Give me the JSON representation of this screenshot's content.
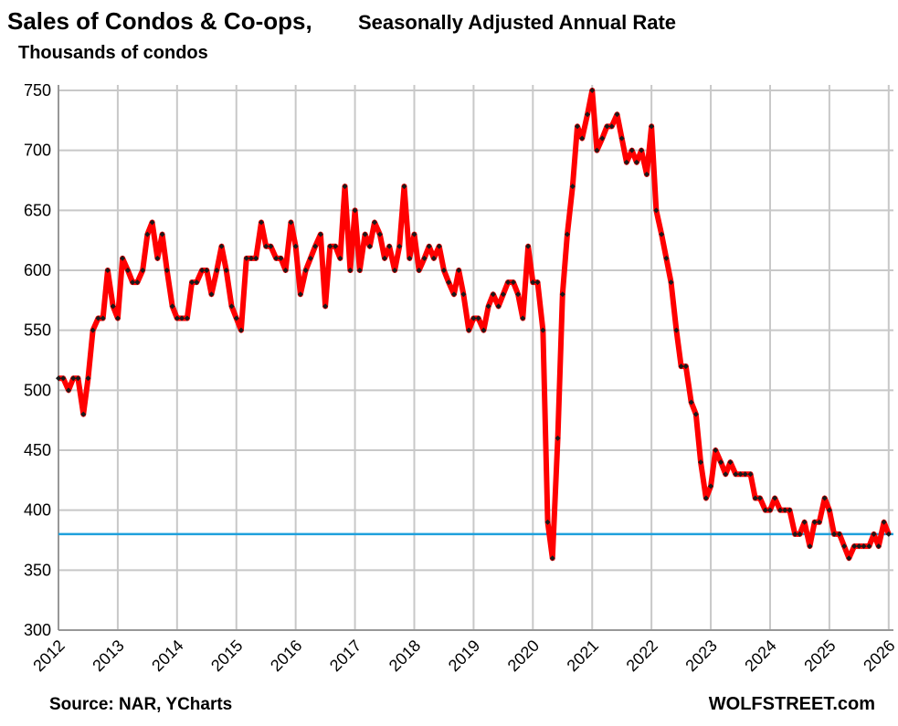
{
  "chart_data": {
    "type": "line",
    "title": "Sales of Condos  & Co-ops,",
    "subtitle": "Seasonally Adjusted Annual Rate",
    "y_axis_label": "Thousands of condos",
    "source": "Source: NAR, YCharts",
    "watermark": "WOLFSTREET.com",
    "color": "#ff0000",
    "marker_color": "#1a1a1a",
    "reference_line": {
      "value": 380,
      "color": "#1ea0dc"
    },
    "grid": true,
    "xlim": [
      2012,
      2026.08
    ],
    "xticks": [
      2012,
      2013,
      2014,
      2015,
      2016,
      2017,
      2018,
      2019,
      2020,
      2021,
      2022,
      2023,
      2024,
      2025,
      2026
    ],
    "ylim": [
      300,
      750
    ],
    "yticks": [
      300,
      350,
      400,
      450,
      500,
      550,
      600,
      650,
      700,
      750
    ],
    "x": [
      2012.0,
      2012.08,
      2012.17,
      2012.25,
      2012.33,
      2012.42,
      2012.5,
      2012.58,
      2012.67,
      2012.75,
      2012.83,
      2012.92,
      2013.0,
      2013.08,
      2013.17,
      2013.25,
      2013.33,
      2013.42,
      2013.5,
      2013.58,
      2013.67,
      2013.75,
      2013.83,
      2013.92,
      2014.0,
      2014.08,
      2014.17,
      2014.25,
      2014.33,
      2014.42,
      2014.5,
      2014.58,
      2014.67,
      2014.75,
      2014.83,
      2014.92,
      2015.0,
      2015.08,
      2015.17,
      2015.25,
      2015.33,
      2015.42,
      2015.5,
      2015.58,
      2015.67,
      2015.75,
      2015.83,
      2015.92,
      2016.0,
      2016.08,
      2016.17,
      2016.25,
      2016.33,
      2016.42,
      2016.5,
      2016.58,
      2016.67,
      2016.75,
      2016.83,
      2016.92,
      2017.0,
      2017.08,
      2017.17,
      2017.25,
      2017.33,
      2017.42,
      2017.5,
      2017.58,
      2017.67,
      2017.75,
      2017.83,
      2017.92,
      2018.0,
      2018.08,
      2018.17,
      2018.25,
      2018.33,
      2018.42,
      2018.5,
      2018.58,
      2018.67,
      2018.75,
      2018.83,
      2018.92,
      2019.0,
      2019.08,
      2019.17,
      2019.25,
      2019.33,
      2019.42,
      2019.5,
      2019.58,
      2019.67,
      2019.75,
      2019.83,
      2019.92,
      2020.0,
      2020.08,
      2020.17,
      2020.25,
      2020.33,
      2020.42,
      2020.5,
      2020.58,
      2020.67,
      2020.75,
      2020.83,
      2020.92,
      2021.0,
      2021.08,
      2021.17,
      2021.25,
      2021.33,
      2021.42,
      2021.5,
      2021.58,
      2021.67,
      2021.75,
      2021.83,
      2021.92,
      2022.0,
      2022.08,
      2022.17,
      2022.25,
      2022.33,
      2022.42,
      2022.5,
      2022.58,
      2022.67,
      2022.75,
      2022.83,
      2022.92,
      2023.0,
      2023.08,
      2023.17,
      2023.25,
      2023.33,
      2023.42,
      2023.5,
      2023.58,
      2023.67,
      2023.75,
      2023.83,
      2023.92,
      2024.0,
      2024.08,
      2024.17,
      2024.25,
      2024.33,
      2024.42,
      2024.5,
      2024.58,
      2024.67,
      2024.75,
      2024.83,
      2024.92,
      2025.0,
      2025.08,
      2025.17,
      2025.25,
      2025.33,
      2025.42,
      2025.5,
      2025.58,
      2025.67,
      2025.75,
      2025.83,
      2025.92,
      2026.0
    ],
    "values": [
      510,
      510,
      500,
      510,
      510,
      480,
      510,
      550,
      560,
      560,
      600,
      570,
      560,
      610,
      600,
      590,
      590,
      600,
      630,
      640,
      610,
      630,
      600,
      570,
      560,
      560,
      560,
      590,
      590,
      600,
      600,
      580,
      600,
      620,
      600,
      570,
      560,
      550,
      610,
      610,
      610,
      640,
      620,
      620,
      610,
      610,
      600,
      640,
      620,
      580,
      600,
      610,
      620,
      630,
      570,
      620,
      620,
      610,
      670,
      600,
      650,
      600,
      630,
      620,
      640,
      630,
      610,
      620,
      600,
      620,
      670,
      610,
      630,
      600,
      610,
      620,
      610,
      620,
      600,
      590,
      580,
      600,
      580,
      550,
      560,
      560,
      550,
      570,
      580,
      570,
      580,
      590,
      590,
      580,
      560,
      620,
      590,
      590,
      550,
      390,
      360,
      460,
      580,
      630,
      670,
      720,
      710,
      730,
      750,
      700,
      710,
      720,
      720,
      730,
      710,
      690,
      700,
      690,
      700,
      680,
      720,
      650,
      630,
      610,
      590,
      550,
      520,
      520,
      490,
      480,
      440,
      410,
      420,
      450,
      440,
      430,
      440,
      430,
      430,
      430,
      430,
      410,
      410,
      400,
      400,
      410,
      400,
      400,
      400,
      380,
      380,
      390,
      370,
      390,
      390,
      410,
      400,
      380,
      380,
      370,
      360,
      370,
      370,
      370,
      370,
      380,
      370,
      390,
      380
    ]
  }
}
